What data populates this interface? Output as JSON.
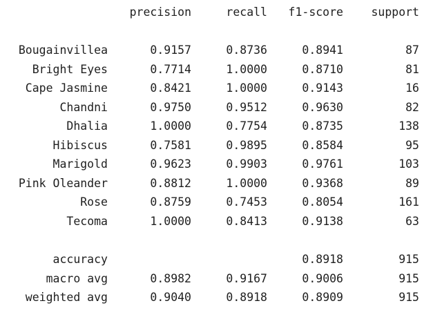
{
  "header": {
    "precision": "precision",
    "recall": "recall",
    "f1": "f1-score",
    "support": "support"
  },
  "classes": [
    {
      "label": "Bougainvillea",
      "precision": "0.9157",
      "recall": "0.8736",
      "f1": "0.8941",
      "support": "87"
    },
    {
      "label": "Bright Eyes",
      "precision": "0.7714",
      "recall": "1.0000",
      "f1": "0.8710",
      "support": "81"
    },
    {
      "label": "Cape Jasmine",
      "precision": "0.8421",
      "recall": "1.0000",
      "f1": "0.9143",
      "support": "16"
    },
    {
      "label": "Chandni",
      "precision": "0.9750",
      "recall": "0.9512",
      "f1": "0.9630",
      "support": "82"
    },
    {
      "label": "Dhalia",
      "precision": "1.0000",
      "recall": "0.7754",
      "f1": "0.8735",
      "support": "138"
    },
    {
      "label": "Hibiscus",
      "precision": "0.7581",
      "recall": "0.9895",
      "f1": "0.8584",
      "support": "95"
    },
    {
      "label": "Marigold",
      "precision": "0.9623",
      "recall": "0.9903",
      "f1": "0.9761",
      "support": "103"
    },
    {
      "label": "Pink Oleander",
      "precision": "0.8812",
      "recall": "1.0000",
      "f1": "0.9368",
      "support": "89"
    },
    {
      "label": "Rose",
      "precision": "0.8759",
      "recall": "0.7453",
      "f1": "0.8054",
      "support": "161"
    },
    {
      "label": "Tecoma",
      "precision": "1.0000",
      "recall": "0.8413",
      "f1": "0.9138",
      "support": "63"
    }
  ],
  "summary": [
    {
      "label": "accuracy",
      "precision": "",
      "recall": "",
      "f1": "0.8918",
      "support": "915"
    },
    {
      "label": "macro avg",
      "precision": "0.8982",
      "recall": "0.9167",
      "f1": "0.9006",
      "support": "915"
    },
    {
      "label": "weighted avg",
      "precision": "0.9040",
      "recall": "0.8918",
      "f1": "0.8909",
      "support": "915"
    }
  ]
}
